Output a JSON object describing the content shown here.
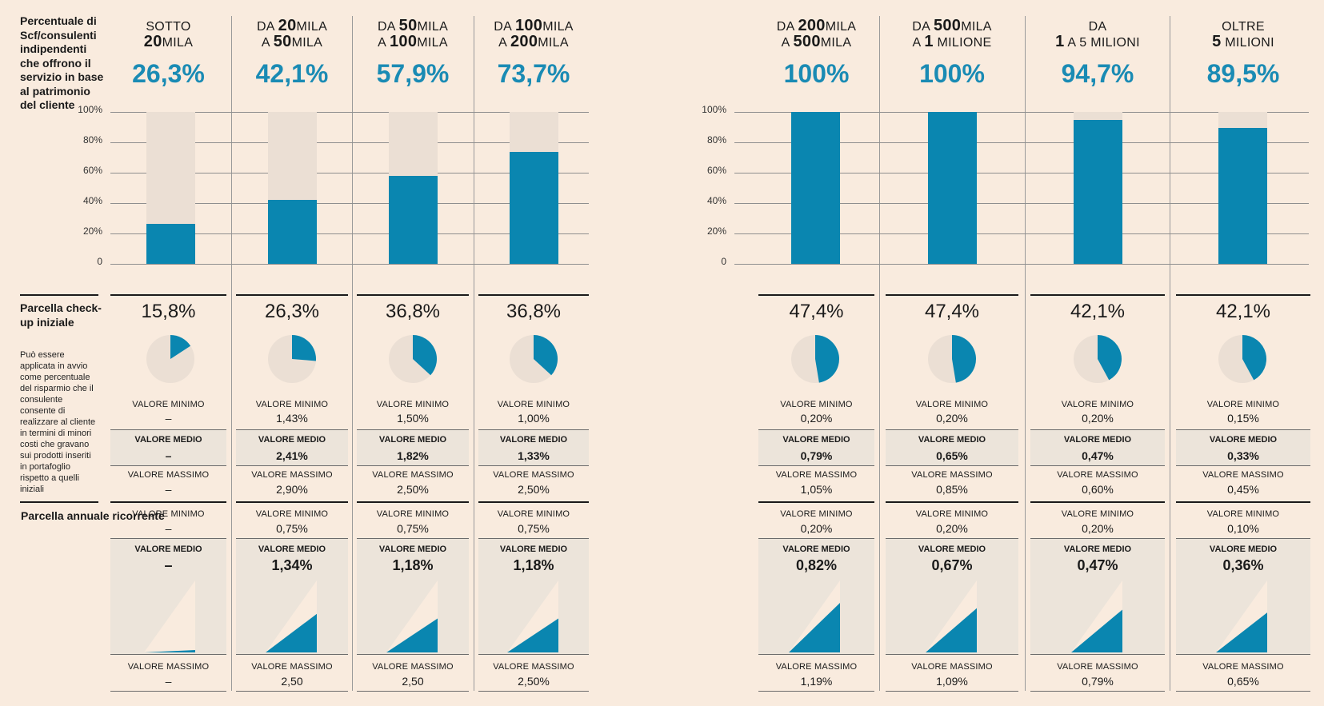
{
  "side": {
    "pct_title": "Percentuale di Scf/consulenti indipendenti che offrono il servizio in base al patrimonio del cliente",
    "init_title": "Parcella check-up iniziale",
    "init_note": "Può essere applicata in avvio come percentuale del risparmio che il consulente consente di realizzare al cliente in termini di minori costi che gravano sui prodotti inseriti in portafoglio rispetto a quelli iniziali",
    "annual_title": "Parcella annuale ricorrente"
  },
  "labels": {
    "min": "VALORE MINIMO",
    "med": "VALORE MEDIO",
    "max": "VALORE MASSIMO"
  },
  "y_ticks": [
    "100%",
    "80%",
    "60%",
    "40%",
    "20%",
    "0"
  ],
  "colors": {
    "accent": "#0a86b0",
    "percent_text": "#1a8bb4",
    "bar_bg": "#ebdfd4",
    "band": "#ece4da",
    "page": "#f9ebde"
  },
  "chart_data": {
    "type": "bar",
    "ylim": [
      0,
      100
    ],
    "categories": [
      {
        "line1_pre": "SOTTO",
        "line1_num": "",
        "line1_post": "",
        "line2_pre": "",
        "line2_num": "20",
        "line2_post": "MILA"
      },
      {
        "line1_pre": "DA ",
        "line1_num": "20",
        "line1_post": "MILA",
        "line2_pre": "A ",
        "line2_num": "50",
        "line2_post": "MILA"
      },
      {
        "line1_pre": "DA ",
        "line1_num": "50",
        "line1_post": "MILA",
        "line2_pre": "A ",
        "line2_num": "100",
        "line2_post": "MILA"
      },
      {
        "line1_pre": "DA ",
        "line1_num": "100",
        "line1_post": "MILA",
        "line2_pre": "A ",
        "line2_num": "200",
        "line2_post": "MILA"
      },
      {
        "line1_pre": "DA ",
        "line1_num": "200",
        "line1_post": "MILA",
        "line2_pre": "A ",
        "line2_num": "500",
        "line2_post": "MILA"
      },
      {
        "line1_pre": "DA ",
        "line1_num": "500",
        "line1_post": "MILA",
        "line2_pre": "A ",
        "line2_num": "1",
        "line2_post": " MILIONE"
      },
      {
        "line1_pre": "DA",
        "line1_num": "",
        "line1_post": "",
        "line2_pre": "",
        "line2_num": "1",
        "line2_post": " A 5 MILIONI"
      },
      {
        "line1_pre": "OLTRE",
        "line1_num": "",
        "line1_post": "",
        "line2_pre": "",
        "line2_num": "5",
        "line2_post": " MILIONI"
      }
    ],
    "offer_pct_text": [
      "26,3%",
      "42,1%",
      "57,9%",
      "73,7%",
      "100%",
      "100%",
      "94,7%",
      "89,5%"
    ],
    "offer_pct": [
      26.3,
      42.1,
      57.9,
      73.7,
      100,
      100,
      94.7,
      89.5
    ],
    "init_pct_text": [
      "15,8%",
      "26,3%",
      "36,8%",
      "36,8%",
      "47,4%",
      "47,4%",
      "42,1%",
      "42,1%"
    ],
    "init_pct": [
      15.8,
      26.3,
      36.8,
      36.8,
      47.4,
      47.4,
      42.1,
      42.1
    ],
    "init_min": [
      "–",
      "1,43%",
      "1,50%",
      "1,00%",
      "0,20%",
      "0,20%",
      "0,20%",
      "0,15%"
    ],
    "init_med": [
      "–",
      "2,41%",
      "1,82%",
      "1,33%",
      "0,79%",
      "0,65%",
      "0,47%",
      "0,33%"
    ],
    "init_max": [
      "–",
      "2,90%",
      "2,50%",
      "2,50%",
      "1,05%",
      "0,85%",
      "0,60%",
      "0,45%"
    ],
    "annual_min": [
      "–",
      "0,75%",
      "0,75%",
      "0,75%",
      "0,20%",
      "0,20%",
      "0,20%",
      "0,10%"
    ],
    "annual_med": [
      "–",
      "1,34%",
      "1,18%",
      "1,18%",
      "0,82%",
      "0,67%",
      "0,47%",
      "0,36%"
    ],
    "annual_max": [
      "–",
      "2,50",
      "2,50",
      "2,50%",
      "1,19%",
      "1,09%",
      "0,79%",
      "0,65%"
    ],
    "annual_med_num": [
      0.0,
      1.34,
      1.18,
      1.18,
      0.82,
      0.67,
      0.47,
      0.36
    ],
    "annual_max_num": [
      0.0,
      2.5,
      2.5,
      2.5,
      1.19,
      1.09,
      0.79,
      0.65
    ]
  }
}
